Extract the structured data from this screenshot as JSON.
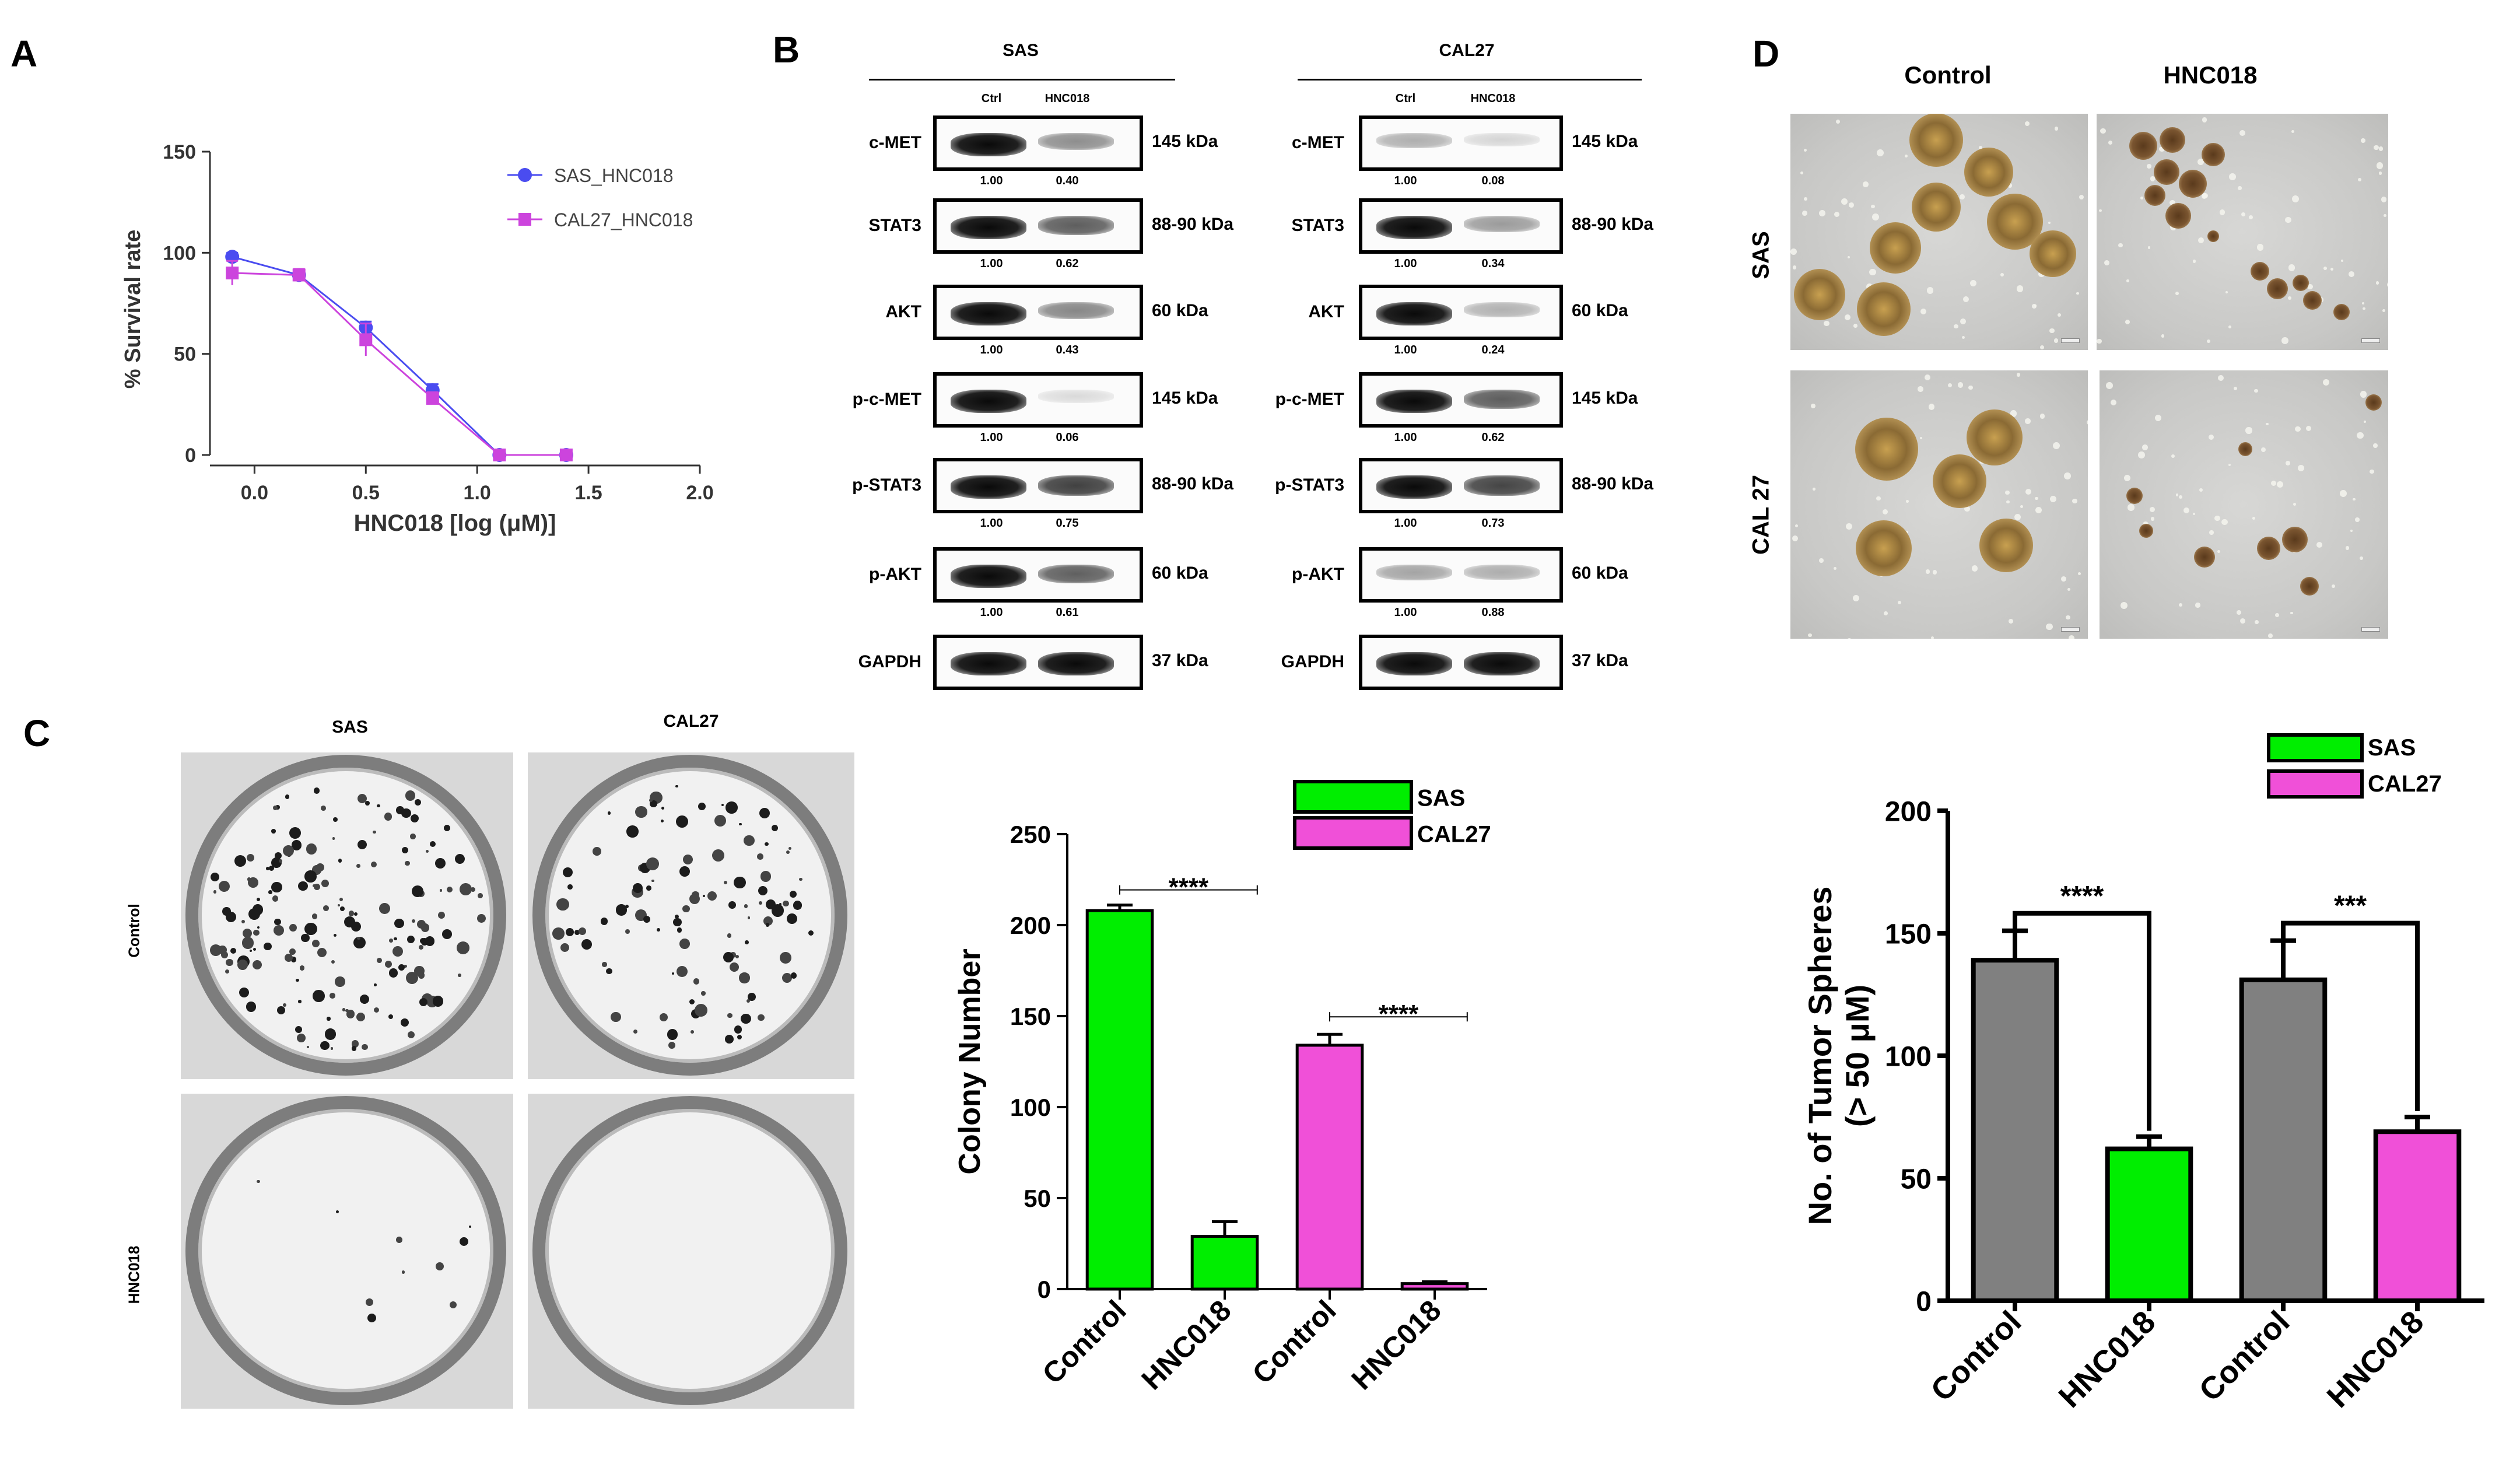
{
  "panels": {
    "a": "A",
    "b": "B",
    "c": "C",
    "d": "D"
  },
  "chart_data": [
    {
      "id": "A",
      "type": "line",
      "xlabel": "HNC018 [log (μM)]",
      "ylabel": "% Survival rate",
      "xlim": [
        -0.2,
        2.0
      ],
      "ylim": [
        0,
        150
      ],
      "xticks": [
        "0.0",
        "0.5",
        "1.0",
        "1.5",
        "2.0"
      ],
      "yticks": [
        "0",
        "50",
        "100",
        "150"
      ],
      "legend_position": "top-right",
      "series": [
        {
          "name": "SAS_HNC018",
          "color": "#4a4cf0",
          "marker": "circle",
          "x": [
            -0.1,
            0.2,
            0.5,
            0.8,
            1.1,
            1.4
          ],
          "y": [
            98,
            89,
            63,
            32,
            0,
            0
          ],
          "err": [
            2,
            2,
            3,
            3,
            1,
            1
          ]
        },
        {
          "name": "CAL27_HNC018",
          "color": "#cc44dd",
          "marker": "square",
          "x": [
            -0.1,
            0.2,
            0.5,
            0.8,
            1.1,
            1.4
          ],
          "y": [
            90,
            89,
            57,
            28,
            0,
            0
          ],
          "err": [
            6,
            3,
            8,
            3,
            1,
            1
          ]
        }
      ]
    },
    {
      "id": "C",
      "type": "bar",
      "ylabel": "Colony Number",
      "ylim": [
        0,
        250
      ],
      "yticks": [
        "0",
        "50",
        "100",
        "150",
        "200",
        "250"
      ],
      "categories": [
        "Control",
        "HNC018",
        "Control",
        "HNC018"
      ],
      "values": [
        208,
        29,
        134,
        3
      ],
      "errors": [
        3,
        8,
        6,
        1
      ],
      "colors": [
        "#00ee00",
        "#00ee00",
        "#f050d8",
        "#f050d8"
      ],
      "legend_position": "top-right",
      "legend": [
        {
          "name": "SAS",
          "color": "#00ee00"
        },
        {
          "name": "CAL27",
          "color": "#f050d8"
        }
      ],
      "significance": [
        {
          "from": 0,
          "to": 1,
          "label": "****"
        },
        {
          "from": 2,
          "to": 3,
          "label": "****"
        }
      ]
    },
    {
      "id": "D",
      "type": "bar",
      "ylabel": "No. of Tumor Spheres",
      "ylabel2": "(> 50 μM)",
      "ylim": [
        0,
        200
      ],
      "yticks": [
        "0",
        "50",
        "100",
        "150",
        "200"
      ],
      "categories": [
        "Control",
        "HNC018",
        "Control",
        "HNC018"
      ],
      "values": [
        139,
        62,
        131,
        69
      ],
      "errors": [
        12,
        5,
        16,
        6
      ],
      "colors": [
        "#808080",
        "#00ee00",
        "#808080",
        "#f050d8"
      ],
      "legend_position": "top",
      "legend": [
        {
          "name": "SAS",
          "color": "#00ee00"
        },
        {
          "name": "CAL27",
          "color": "#f050d8"
        }
      ],
      "significance": [
        {
          "from": 0,
          "to": 1,
          "label": "****"
        },
        {
          "from": 2,
          "to": 3,
          "label": "***"
        }
      ]
    }
  ],
  "western": {
    "cells": [
      "SAS",
      "CAL27"
    ],
    "lanes": [
      "Ctrl",
      "HNC018"
    ],
    "proteins": [
      {
        "name": "c-MET",
        "kda": "145 kDa",
        "sas": [
          "1.00",
          "0.40"
        ],
        "cal27": [
          "1.00",
          "0.08"
        ],
        "sas_int": [
          1.0,
          0.4
        ],
        "cal27_int": [
          0.25,
          0.08
        ]
      },
      {
        "name": "STAT3",
        "kda": "88-90 kDa",
        "sas": [
          "1.00",
          "0.62"
        ],
        "cal27": [
          "1.00",
          "0.34"
        ],
        "sas_int": [
          1.0,
          0.62
        ],
        "cal27_int": [
          1.0,
          0.34
        ]
      },
      {
        "name": "AKT",
        "kda": "60 kDa",
        "sas": [
          "1.00",
          "0.43"
        ],
        "cal27": [
          "1.00",
          "0.24"
        ],
        "sas_int": [
          1.0,
          0.43
        ],
        "cal27_int": [
          1.0,
          0.24
        ]
      },
      {
        "name": "p-c-MET",
        "kda": "145 kDa",
        "sas": [
          "1.00",
          "0.06"
        ],
        "cal27": [
          "1.00",
          "0.62"
        ],
        "sas_int": [
          1.0,
          0.06
        ],
        "cal27_int": [
          1.0,
          0.62
        ]
      },
      {
        "name": "p-STAT3",
        "kda": "88-90 kDa",
        "sas": [
          "1.00",
          "0.75"
        ],
        "cal27": [
          "1.00",
          "0.73"
        ],
        "sas_int": [
          1.0,
          0.75
        ],
        "cal27_int": [
          1.0,
          0.73
        ]
      },
      {
        "name": "p-AKT",
        "kda": "60 kDa",
        "sas": [
          "1.00",
          "0.61"
        ],
        "cal27": [
          "1.00",
          "0.88"
        ],
        "sas_int": [
          1.0,
          0.61
        ],
        "cal27_int": [
          0.3,
          0.26
        ]
      },
      {
        "name": "GAPDH",
        "kda": "37 kDa",
        "sas": null,
        "cal27": null,
        "sas_int": [
          1.0,
          1.0
        ],
        "cal27_int": [
          1.0,
          1.0
        ]
      }
    ]
  },
  "colony_images": {
    "cols": [
      "SAS",
      "CAL27"
    ],
    "rows": [
      "Control",
      "HNC018"
    ]
  },
  "sphere_images": {
    "cols": [
      "Control",
      "HNC018"
    ],
    "rows": [
      "SAS",
      "CAL 27"
    ]
  }
}
